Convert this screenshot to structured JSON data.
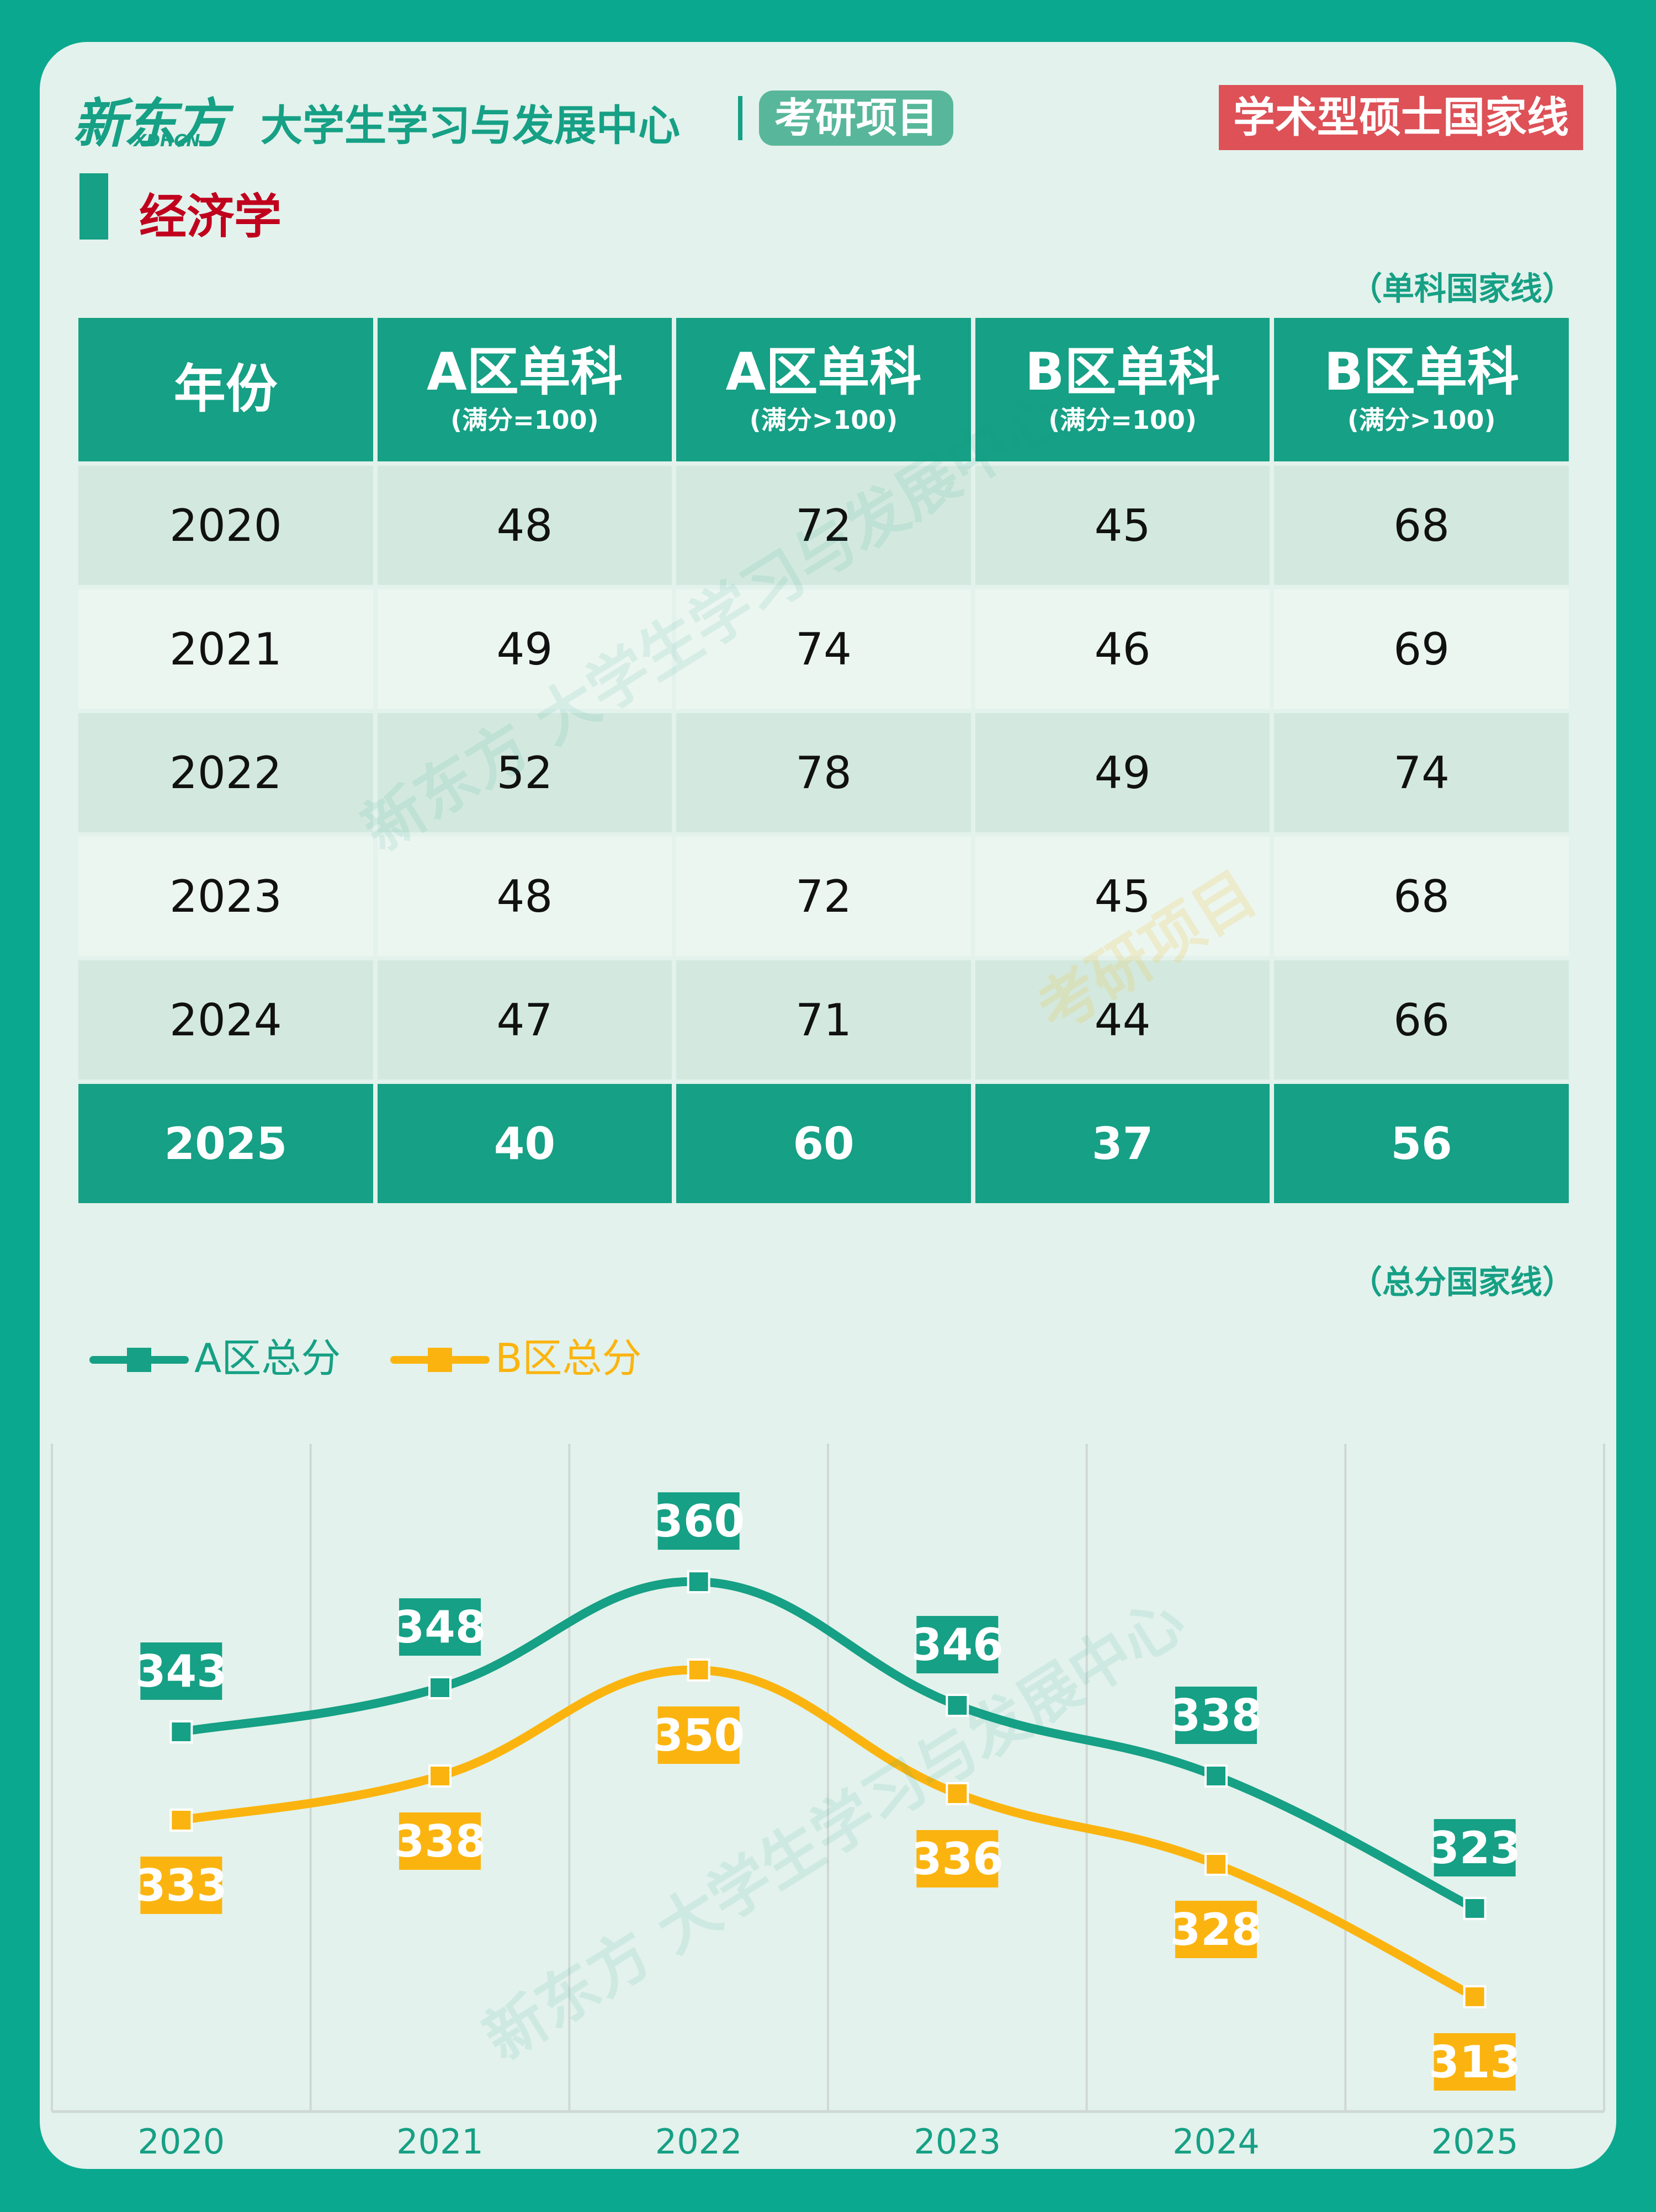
{
  "header": {
    "logo_text": "新东方",
    "logo_sub": "XDF.CN",
    "center_title": "大学生学习与发展中心",
    "pill_label": "考研项目",
    "tag_label": "学术型硕士国家线"
  },
  "section": {
    "title": "经济学",
    "table_note": "（单科国家线）",
    "chart_note": "（总分国家线）"
  },
  "table": {
    "headers": [
      {
        "main": "年份",
        "sub": ""
      },
      {
        "main": "A区单科",
        "sub": "(满分=100)"
      },
      {
        "main": "A区单科",
        "sub": "(满分>100)"
      },
      {
        "main": "B区单科",
        "sub": "(满分=100)"
      },
      {
        "main": "B区单科",
        "sub": "(满分>100)"
      }
    ],
    "rows": [
      [
        "2020",
        "48",
        "72",
        "45",
        "68"
      ],
      [
        "2021",
        "49",
        "74",
        "46",
        "69"
      ],
      [
        "2022",
        "52",
        "78",
        "49",
        "74"
      ],
      [
        "2023",
        "48",
        "72",
        "45",
        "68"
      ],
      [
        "2024",
        "47",
        "71",
        "44",
        "66"
      ],
      [
        "2025",
        "40",
        "60",
        "37",
        "56"
      ]
    ]
  },
  "colors": {
    "primary": "#16a085",
    "secondary": "#fbb40f",
    "accent_red": "#dd5157"
  },
  "chart_data": {
    "type": "line",
    "x": [
      "2020",
      "2021",
      "2022",
      "2023",
      "2024",
      "2025"
    ],
    "ylim": [
      300,
      370
    ],
    "series": [
      {
        "name": "A区总分",
        "values": [
          343,
          348,
          360,
          346,
          338,
          323
        ],
        "color": "#16a085",
        "label_position": "above"
      },
      {
        "name": "B区总分",
        "values": [
          333,
          338,
          350,
          336,
          328,
          313
        ],
        "color": "#fbb40f",
        "label_position": "below"
      }
    ],
    "smooth": true,
    "grid": "vertical",
    "legend": "top-left"
  },
  "watermark": {
    "brand": "新东方",
    "text": "大学生学习与发展中心",
    "project": "考研项目"
  }
}
